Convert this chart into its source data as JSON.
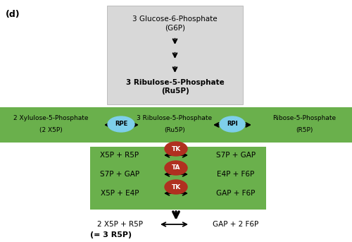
{
  "fig_label": "(d)",
  "bg_color": "#ffffff",
  "gray_box": {
    "color": "#d8d8d8",
    "line1": "3 Glucose-6-Phosphate",
    "line2": "(G6P)",
    "line3": "3 Ribulose-5-Phosphate",
    "line4": "(Ru5P)"
  },
  "green_bar": {
    "color": "#6ab04c",
    "left_line1": "2 Xylulose-5-Phosphate",
    "left_line2": "(2 X5P)",
    "center_line1": "3 Ribulose-5-Phosphate",
    "center_line2": "(Ru5P)",
    "right_line1": "Ribose-5-Phosphate",
    "right_line2": "(R5P)",
    "rpe_label": "RPE",
    "rpi_label": "RPI"
  },
  "green_box": {
    "color": "#6ab04c",
    "row1_left": "X5P + R5P",
    "row1_right": "S7P + GAP",
    "row1_enzyme": "TK",
    "row2_left": "S7P + GAP",
    "row2_right": "E4P + F6P",
    "row2_enzyme": "TA",
    "row3_left": "X5P + E4P",
    "row3_right": "GAP + F6P",
    "row3_enzyme": "TK"
  },
  "summary": {
    "left": "2 X5P + R5P",
    "right": "GAP + 2 F6P",
    "note": "(= 3 R5P)"
  },
  "enzyme_oval_color": "#b03020",
  "enzyme_text_color": "#ffffff",
  "rpe_rpi_color": "#7ecfea",
  "arrow_color": "#000000",
  "text_color": "#000000"
}
